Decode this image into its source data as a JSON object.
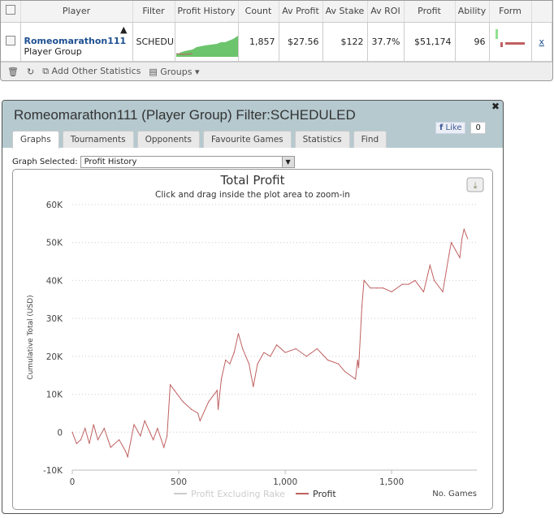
{
  "grid": {
    "columns": [
      "Player",
      "Filter",
      "Profit History",
      "Count",
      "Av Profit",
      "Av Stake",
      "Av ROI",
      "Profit",
      "Ability",
      "Form"
    ],
    "row": {
      "player": "Romeomarathon111",
      "group": "Player Group",
      "filter": "SCHEDULED",
      "count": "1,857",
      "av_profit": "$27.56",
      "av_stake": "$122",
      "av_roi": "37.7%",
      "profit": "$51,174",
      "ability": "96",
      "remove": "x"
    },
    "footer": {
      "add": "Add Other Statistics",
      "groups": "Groups"
    }
  },
  "window": {
    "title": "Romeomarathon111 (Player Group) Filter:SCHEDULED",
    "tabs": [
      "Graphs",
      "Tournaments",
      "Opponents",
      "Favourite Games",
      "Statistics",
      "Find"
    ],
    "active_tab": "Graphs",
    "like": "Like",
    "like_count": "0",
    "graph_label": "Graph Selected:",
    "graph_value": "Profit History"
  },
  "chart_data": {
    "type": "line",
    "title": "Total Profit",
    "subtitle": "Click and drag inside the plot area to zoom-in",
    "xlabel": "No. Games",
    "ylabel": "Cumulative Total (USD)",
    "xlim": [
      0,
      1900
    ],
    "ylim": [
      -10000,
      60000
    ],
    "xticks": [
      {
        "v": 0,
        "l": "0"
      },
      {
        "v": 500,
        "l": "500"
      },
      {
        "v": 1000,
        "l": "1,000"
      },
      {
        "v": 1500,
        "l": "1,500"
      }
    ],
    "yticks": [
      {
        "v": -10000,
        "l": "-10K"
      },
      {
        "v": 0,
        "l": "0"
      },
      {
        "v": 10000,
        "l": "10K"
      },
      {
        "v": 20000,
        "l": "20K"
      },
      {
        "v": 30000,
        "l": "30K"
      },
      {
        "v": 40000,
        "l": "40K"
      },
      {
        "v": 50000,
        "l": "50K"
      },
      {
        "v": 60000,
        "l": "60K"
      }
    ],
    "grid": true,
    "legend": "bottom",
    "series": [
      {
        "name": "Profit Excluding Rake",
        "color": "#cccccc",
        "visible": false,
        "values": []
      },
      {
        "name": "Profit",
        "color": "#c06060",
        "x": [
          0,
          20,
          40,
          60,
          80,
          100,
          120,
          150,
          180,
          220,
          250,
          260,
          290,
          320,
          340,
          380,
          400,
          430,
          445,
          460,
          480,
          520,
          560,
          590,
          600,
          640,
          680,
          685,
          700,
          720,
          740,
          760,
          780,
          800,
          830,
          850,
          870,
          900,
          930,
          960,
          1000,
          1050,
          1100,
          1150,
          1200,
          1250,
          1280,
          1330,
          1340,
          1345,
          1360,
          1370,
          1400,
          1430,
          1460,
          1500,
          1550,
          1580,
          1610,
          1650,
          1680,
          1700,
          1740,
          1770,
          1780,
          1800,
          1820,
          1830,
          1840,
          1850,
          1857
        ],
        "y": [
          0,
          -3000,
          -2000,
          1000,
          -3000,
          2000,
          -2000,
          1000,
          -4000,
          -2000,
          -5000,
          -6500,
          2000,
          -1000,
          3000,
          -2000,
          1000,
          -4000,
          -1000,
          12500,
          11000,
          8000,
          6000,
          5000,
          3000,
          8000,
          11000,
          6000,
          14000,
          19000,
          18000,
          21000,
          26000,
          22000,
          18000,
          12000,
          18000,
          21000,
          20000,
          23000,
          21000,
          22000,
          20000,
          22000,
          19000,
          18000,
          16000,
          14000,
          19000,
          17000,
          33000,
          40000,
          38000,
          38000,
          38000,
          37000,
          39000,
          39000,
          40000,
          37000,
          44000,
          40000,
          37000,
          47000,
          50000,
          48000,
          46000,
          51000,
          53500,
          52000,
          51000
        ]
      }
    ]
  }
}
